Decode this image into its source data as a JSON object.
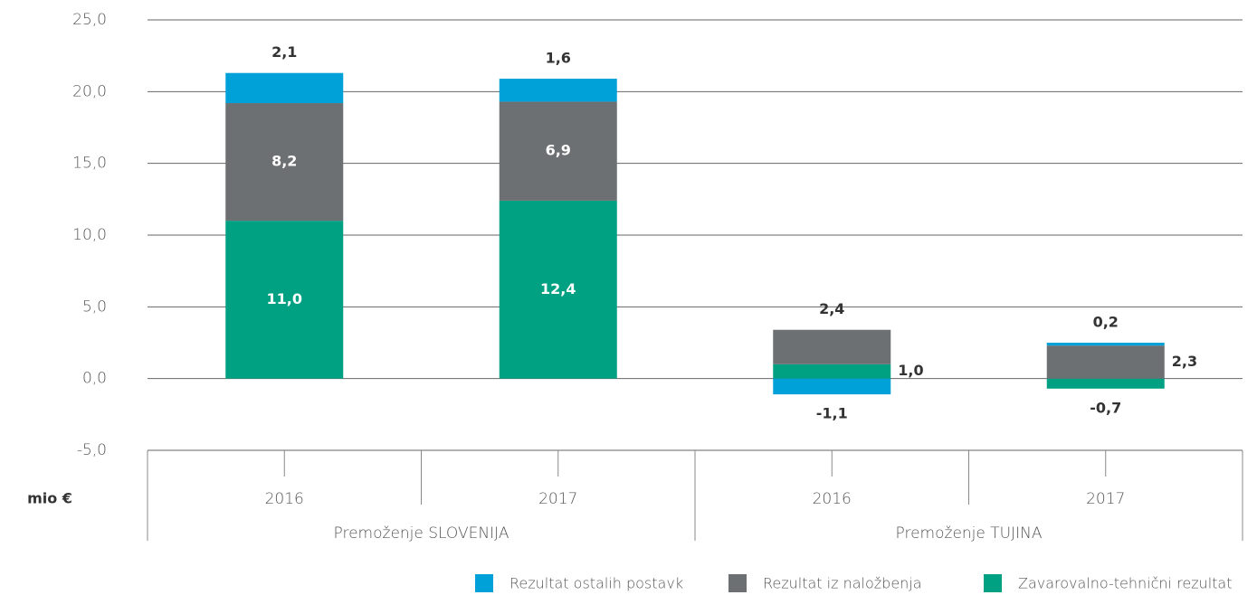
{
  "chart_data": {
    "type": "stacked_bar",
    "y_unit_label": "mio €",
    "categories": [
      "2016",
      "2017",
      "2016",
      "2017"
    ],
    "groups": [
      {
        "name": "Premoženje SLOVENIJA",
        "span": 2
      },
      {
        "name": "Premoženje TUJINA",
        "span": 2
      }
    ],
    "series": [
      {
        "name": "Rezultat ostalih postavk",
        "color": "#00a0d8",
        "values": [
          2.1,
          1.6,
          -1.1,
          0.2
        ],
        "value_labels": [
          "2,1",
          "1,6",
          "-1,1",
          "0,2"
        ]
      },
      {
        "name": "Rezultat iz naložbenja",
        "color": "#6d7072",
        "values": [
          8.2,
          6.9,
          2.4,
          2.3
        ],
        "value_labels": [
          "8,2",
          "6,9",
          "2,4",
          "2,3"
        ]
      },
      {
        "name": "Zavarovalno-tehnični rezultat",
        "color": "#00a082",
        "values": [
          11.0,
          12.4,
          1.0,
          -0.7
        ],
        "value_labels": [
          "11,0",
          "12,4",
          "1,0",
          "-0,7"
        ]
      }
    ],
    "stack_order": "last series at bottom",
    "ylim": [
      -5,
      25
    ],
    "yticks": [
      {
        "value": -5,
        "label": "-5,0"
      },
      {
        "value": 0,
        "label": "0,0"
      },
      {
        "value": 5,
        "label": "5,0"
      },
      {
        "value": 10,
        "label": "10,0"
      },
      {
        "value": 15,
        "label": "15,0"
      },
      {
        "value": 20,
        "label": "20,0"
      },
      {
        "value": 25,
        "label": "25,0"
      }
    ],
    "grid": true,
    "legend": "bottom-right"
  }
}
